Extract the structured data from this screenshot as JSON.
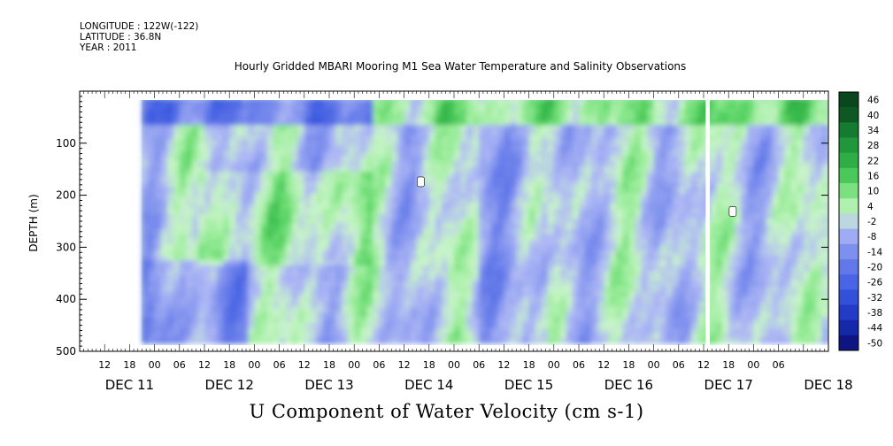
{
  "header": {
    "longitude": "LONGITUDE : 122W(-122)",
    "latitude": "LATITUDE : 36.8N",
    "year": "YEAR : 2011"
  },
  "title": "Hourly Gridded MBARI Mooring M1 Sea Water Temperature and Salinity Observations",
  "bottom_title": "U Component of Water Velocity (cm s-1)",
  "chart_data": {
    "type": "heatmap",
    "title": "Hourly Gridded MBARI Mooring M1 Sea Water Temperature and Salinity Observations",
    "variable": "U Component of Water Velocity (cm s-1)",
    "ylabel": "DEPTH (m)",
    "y_reversed": true,
    "ylim": [
      0,
      500
    ],
    "yticks": [
      100,
      200,
      300,
      400,
      500
    ],
    "xlim_hours": [
      0,
      180
    ],
    "data_xlim_hours": [
      15,
      180
    ],
    "hour_tick_labels": [
      "12",
      "18",
      "00",
      "06",
      "12",
      "18",
      "00",
      "06",
      "12",
      "18",
      "00",
      "06",
      "12",
      "18",
      "00",
      "06",
      "12",
      "18",
      "00",
      "06",
      "12",
      "18",
      "00",
      "06",
      "12",
      "18",
      "00",
      "06"
    ],
    "day_labels": [
      "DEC 11",
      "DEC 12",
      "DEC 13",
      "DEC 14",
      "DEC 15",
      "DEC 16",
      "DEC 17",
      "DEC 18"
    ],
    "colorbar": {
      "levels": [
        -50,
        -44,
        -38,
        -32,
        -26,
        -20,
        -14,
        -8,
        -2,
        4,
        10,
        16,
        22,
        28,
        34,
        40,
        46
      ],
      "tick_labels": [
        "46",
        "40",
        "34",
        "28",
        "22",
        "16",
        "10",
        "4",
        "-2",
        "-8",
        "-14",
        "-20",
        "-26",
        "-32",
        "-38",
        "-44",
        "-50"
      ]
    },
    "colors": {
      "strong_negative": "#1a1a78",
      "weak_negative": "#a6aef0",
      "near_zero": "#c8f0c8",
      "weak_positive": "#8ce68c",
      "strong_positive": "#106030"
    },
    "missing_data": [
      {
        "description": "vertical gap",
        "hour_start": 150.5,
        "hour_end": 151.5,
        "depth_start": 0,
        "depth_end": 500
      },
      {
        "description": "white patch",
        "hour": 82,
        "depth": 175
      },
      {
        "description": "white patch",
        "hour": 157,
        "depth": 232
      }
    ],
    "pattern": {
      "surface_band_depth": [
        20,
        60
      ],
      "surface_positive_hours": [
        75,
        165
      ],
      "surface_negative_hours": [
        15,
        70
      ]
    }
  }
}
